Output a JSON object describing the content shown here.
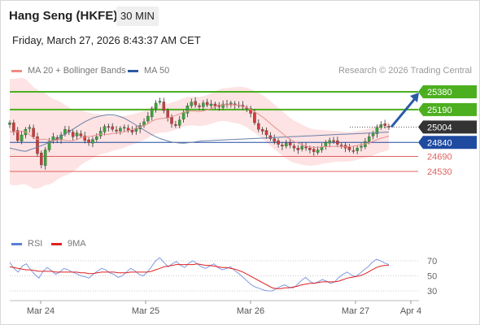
{
  "header": {
    "title": "Hang Seng (HKFE)",
    "timeframe": "30 MIN"
  },
  "datetime": "Friday, March 27, 2026 8:43:37 AM CET",
  "credit": "Research © 2026 Trading Central",
  "legend_main": [
    {
      "label": "MA 20 + Bollinger Bands",
      "color": "#f28b82"
    },
    {
      "label": "MA 50",
      "color": "#2c5aa0"
    }
  ],
  "legend_rsi": [
    {
      "label": "RSI",
      "color": "#5b7fd6"
    },
    {
      "label": "9MA",
      "color": "#e02020"
    }
  ],
  "colors": {
    "resistance": "#4caf20",
    "pivot": "#1e4aa0",
    "support": "#e06060",
    "current": "#333333",
    "bull": "#3aa53a",
    "bear": "#d33a3a",
    "bollinger_fill": "#fde3e3",
    "arrow": "#2a5ba8"
  },
  "chart_data": [
    {
      "type": "candlestick",
      "title": "Hang Seng (HKFE)",
      "x_tick_labels": [
        "Mar 24",
        "Mar 25",
        "Mar 26",
        "Mar 27",
        "Apr 4"
      ],
      "ylim": [
        24200,
        25450
      ],
      "levels": [
        {
          "value": 25380,
          "label": "25380",
          "kind": "resistance"
        },
        {
          "value": 25190,
          "label": "25190",
          "kind": "resistance"
        },
        {
          "value": 25004,
          "label": "25004",
          "kind": "current"
        },
        {
          "value": 24840,
          "label": "24840",
          "kind": "pivot"
        },
        {
          "value": 24690,
          "label": "24690",
          "kind": "support"
        },
        {
          "value": 24530,
          "label": "24530",
          "kind": "support"
        }
      ],
      "close_series": [
        25050,
        24960,
        24860,
        24920,
        24980,
        25000,
        24900,
        24720,
        24600,
        24760,
        24850,
        24900,
        24870,
        24920,
        24980,
        24950,
        24900,
        24940,
        24910,
        24860,
        24840,
        24870,
        24900,
        24960,
        25010,
        25000,
        24980,
        24960,
        24990,
        25000,
        24970,
        24950,
        24990,
        25020,
        25060,
        25120,
        25200,
        25260,
        25280,
        25180,
        25100,
        25040,
        25020,
        25080,
        25160,
        25230,
        25270,
        25240,
        25220,
        25260,
        25240,
        25250,
        25230,
        25220,
        25250,
        25240,
        25260,
        25240,
        25230,
        25220,
        25200,
        25150,
        25050,
        24980,
        24960,
        24920,
        24880,
        24850,
        24820,
        24800,
        24830,
        24810,
        24780,
        24760,
        24800,
        24780,
        24760,
        24740,
        24760,
        24790,
        24840,
        24860,
        24850,
        24820,
        24810,
        24780,
        24760,
        24750,
        24780,
        24800,
        24850,
        24900,
        24940,
        25000,
        25030,
        25020,
        25010
      ],
      "ma50": [
        24780,
        24770,
        24760,
        24750,
        24745,
        24760,
        24775,
        24790,
        24805,
        24822,
        24840,
        24860,
        24880,
        24905,
        24930,
        24955,
        24982,
        25008,
        25035,
        25060,
        25080,
        25100,
        25112,
        25122,
        25130,
        25135,
        25134,
        25128,
        25115,
        25098,
        25075,
        25050,
        25024,
        24998,
        24972,
        24946,
        24922,
        24900,
        24882,
        24868,
        24855,
        24845,
        24838,
        24834,
        24832,
        24835,
        24840,
        24846,
        24852,
        24856,
        24858,
        24860,
        24862,
        24864,
        24866,
        24868,
        24870,
        24872,
        24874,
        24876,
        24878,
        24880,
        24882,
        24884,
        24886,
        24888,
        24890,
        24892,
        24894,
        24896,
        24898,
        24900,
        24902,
        24904,
        24906,
        24908,
        24910,
        24912,
        24914,
        24916,
        24918,
        24920,
        24922,
        24924,
        24926,
        24928,
        24930,
        24932,
        24934,
        24936,
        24938,
        24940,
        24942,
        24944,
        24946,
        24948,
        24950
      ]
    },
    {
      "type": "line",
      "title": "RSI",
      "ylim": [
        20,
        80
      ],
      "ticks": [
        70,
        50,
        30
      ],
      "series": [
        {
          "name": "RSI",
          "values": [
            68,
            60,
            55,
            63,
            66,
            58,
            52,
            47,
            56,
            61,
            57,
            52,
            55,
            60,
            58,
            55,
            53,
            50,
            49,
            47,
            52,
            56,
            60,
            58,
            54,
            52,
            48,
            50,
            55,
            60,
            57,
            52,
            50,
            55,
            62,
            70,
            74,
            68,
            62,
            66,
            69,
            64,
            61,
            67,
            70,
            66,
            62,
            60,
            63,
            66,
            61,
            58,
            60,
            62,
            57,
            53,
            48,
            43,
            38,
            35,
            33,
            31,
            30,
            30,
            33,
            36,
            38,
            35,
            34,
            38,
            44,
            48,
            43,
            40,
            42,
            45,
            43,
            40,
            42,
            48,
            52,
            55,
            51,
            49,
            53,
            58,
            62,
            68,
            72,
            70,
            67,
            65
          ]
        },
        {
          "name": "9MA",
          "values": [
            62,
            61,
            60,
            59,
            58,
            58,
            57,
            56,
            56,
            56,
            56,
            55,
            55,
            55,
            55,
            55,
            55,
            54,
            54,
            53,
            53,
            54,
            55,
            55,
            55,
            55,
            54,
            54,
            54,
            55,
            55,
            55,
            55,
            55,
            56,
            58,
            60,
            62,
            63,
            64,
            65,
            65,
            65,
            65,
            65,
            66,
            65,
            64,
            64,
            63,
            62,
            61,
            61,
            60,
            59,
            57,
            55,
            52,
            49,
            46,
            43,
            40,
            37,
            34,
            33,
            33,
            34,
            34,
            35,
            36,
            38,
            39,
            40,
            40,
            41,
            42,
            42,
            42,
            42,
            43,
            45,
            47,
            48,
            49,
            50,
            52,
            55,
            58,
            61,
            63,
            64,
            64
          ]
        }
      ]
    }
  ]
}
